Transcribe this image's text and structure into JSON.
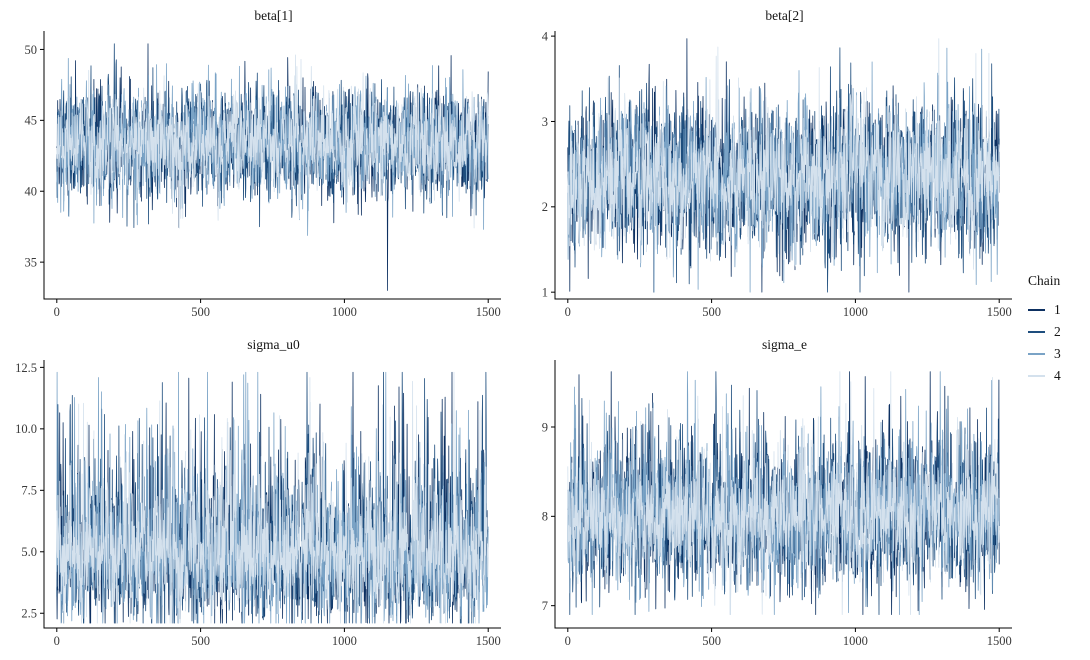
{
  "figure": {
    "background": "#ffffff",
    "axis_color": "#000000",
    "tick_label_color": "#3a3a3a",
    "title_color": "#161616",
    "rows": 2,
    "cols": 2,
    "grid": "off"
  },
  "legend": {
    "title": "Chain",
    "position": "right",
    "entries": [
      {
        "label": "1",
        "color": "#0d3061"
      },
      {
        "label": "2",
        "color": "#1e4e7e"
      },
      {
        "label": "3",
        "color": "#7aa3c6"
      },
      {
        "label": "4",
        "color": "#d4e1ed"
      }
    ]
  },
  "chart_data": [
    {
      "type": "line",
      "subtype": "mcmc-trace",
      "title": "beta[1]",
      "n_iterations": 1500,
      "n_chains": 4,
      "xlim": [
        0,
        1500
      ],
      "xticks": [
        0,
        500,
        1000,
        1500
      ],
      "xtick_labels": [
        "0",
        "500",
        "1000",
        "1500"
      ],
      "ylim": [
        32.4,
        51.3
      ],
      "yticks": [
        35,
        40,
        45,
        50
      ],
      "ytick_labels": [
        "35",
        "40",
        "45",
        "50"
      ],
      "distribution": {
        "mean": 43.4,
        "sd": 1.8,
        "skew": 0,
        "min": 33.0,
        "max": 50.4,
        "spike_prob": 0.006
      },
      "notable_points": [
        {
          "chain": 2,
          "iteration": 200,
          "value": 50.4
        },
        {
          "chain": 1,
          "iteration": 1150,
          "value": 33.0
        }
      ]
    },
    {
      "type": "line",
      "subtype": "mcmc-trace",
      "title": "beta[2]",
      "n_iterations": 1500,
      "n_chains": 4,
      "xlim": [
        0,
        1500
      ],
      "xticks": [
        0,
        500,
        1000,
        1500
      ],
      "xtick_labels": [
        "0",
        "500",
        "1000",
        "1500"
      ],
      "ylim": [
        0.92,
        4.06
      ],
      "yticks": [
        1,
        2,
        3,
        4
      ],
      "ytick_labels": [
        "1",
        "2",
        "3",
        "4"
      ],
      "distribution": {
        "mean": 2.35,
        "sd": 0.42,
        "skew": 0,
        "min": 1.0,
        "max": 3.97,
        "spike_prob": 0.006
      },
      "notable_points": [
        {
          "chain": 4,
          "iteration": 1290,
          "value": 3.97
        }
      ]
    },
    {
      "type": "line",
      "subtype": "mcmc-trace",
      "title": "sigma_u0",
      "n_iterations": 1500,
      "n_chains": 4,
      "xlim": [
        0,
        1500
      ],
      "xticks": [
        0,
        500,
        1000,
        1500
      ],
      "xtick_labels": [
        "0",
        "500",
        "1000",
        "1500"
      ],
      "ylim": [
        1.9,
        12.8
      ],
      "yticks": [
        2.5,
        5.0,
        7.5,
        10.0,
        12.5
      ],
      "ytick_labels": [
        "2.5",
        "5.0",
        "7.5",
        "10.0",
        "12.5"
      ],
      "distribution": {
        "mean": 4.9,
        "sd": 1.3,
        "skew": 0.5,
        "min": 2.1,
        "max": 12.3,
        "spike_prob": 0.007
      },
      "notable_points": [
        {
          "chain": 1,
          "iteration": 1030,
          "value": 12.3
        },
        {
          "chain": 3,
          "iteration": 650,
          "value": 12.2
        }
      ]
    },
    {
      "type": "line",
      "subtype": "mcmc-trace",
      "title": "sigma_e",
      "n_iterations": 1500,
      "n_chains": 4,
      "xlim": [
        0,
        1500
      ],
      "xticks": [
        0,
        500,
        1000,
        1500
      ],
      "xtick_labels": [
        "0",
        "500",
        "1000",
        "1500"
      ],
      "ylim": [
        6.75,
        9.75
      ],
      "yticks": [
        7,
        8,
        9
      ],
      "ytick_labels": [
        "7",
        "8",
        "9"
      ],
      "distribution": {
        "mean": 8.0,
        "sd": 0.36,
        "skew": 0.25,
        "min": 6.9,
        "max": 9.62,
        "spike_prob": 0.006
      },
      "notable_points": [
        {
          "chain": 1,
          "iteration": 980,
          "value": 9.62
        },
        {
          "chain": 3,
          "iteration": 880,
          "value": 9.45
        }
      ]
    }
  ]
}
